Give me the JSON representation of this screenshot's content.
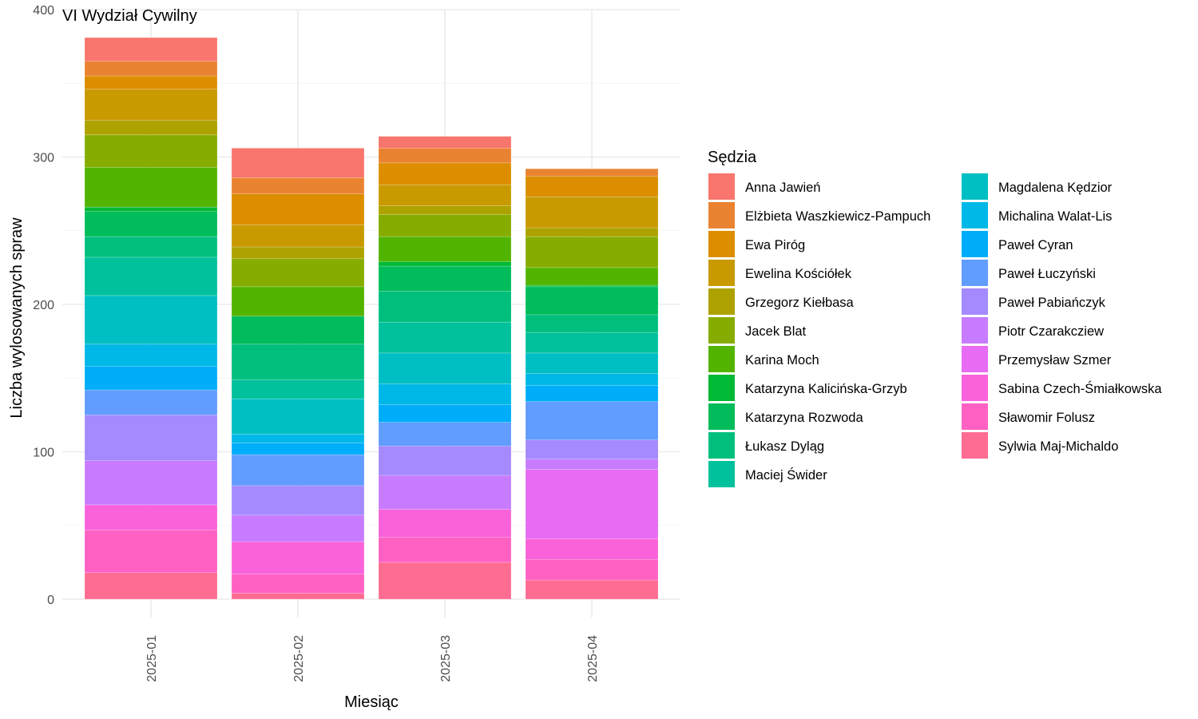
{
  "chart_data": {
    "type": "bar",
    "stacked": true,
    "title": "VI Wydział Cywilny",
    "xlabel": "Miesiąc",
    "ylabel": "Liczba wylosowanych spraw",
    "ylim": [
      0,
      400
    ],
    "yticks": [
      0,
      100,
      200,
      300,
      400
    ],
    "grid": true,
    "legend_title": "Sędzia",
    "legend_position": "right",
    "categories": [
      "2025-01",
      "2025-02",
      "2025-03",
      "2025-04"
    ],
    "series": [
      {
        "name": "Anna Jawień",
        "color": "#F8766D",
        "values": [
          16,
          20,
          8,
          0
        ]
      },
      {
        "name": "Elżbieta Waszkiewicz-Pampuch",
        "color": "#EA8331",
        "values": [
          10,
          11,
          10,
          5
        ]
      },
      {
        "name": "Ewa Piróg",
        "color": "#DC8E00",
        "values": [
          9,
          21,
          15,
          14
        ]
      },
      {
        "name": "Ewelina Kościółek",
        "color": "#C89A00",
        "values": [
          21,
          15,
          14,
          21
        ]
      },
      {
        "name": "Grzegorz Kiełbasa",
        "color": "#AEA200",
        "values": [
          10,
          8,
          6,
          6
        ]
      },
      {
        "name": "Jacek Blat",
        "color": "#86AC00",
        "values": [
          22,
          19,
          15,
          21
        ]
      },
      {
        "name": "Karina Moch",
        "color": "#53B400",
        "values": [
          27,
          20,
          17,
          12
        ]
      },
      {
        "name": "Katarzyna Kalicińska-Grzyb",
        "color": "#00B934",
        "values": [
          3,
          0,
          3,
          1
        ]
      },
      {
        "name": "Katarzyna Rozwoda",
        "color": "#00BC5A",
        "values": [
          17,
          19,
          17,
          19
        ]
      },
      {
        "name": "Łukasz Dyląg",
        "color": "#00BF7D",
        "values": [
          14,
          24,
          21,
          12
        ]
      },
      {
        "name": "Maciej Świder",
        "color": "#00C19C",
        "values": [
          26,
          13,
          21,
          14
        ]
      },
      {
        "name": "Magdalena Kędzior",
        "color": "#00BFC4",
        "values": [
          33,
          24,
          21,
          14
        ]
      },
      {
        "name": "Michalina Walat-Lis",
        "color": "#00B8E7",
        "values": [
          15,
          6,
          14,
          8
        ]
      },
      {
        "name": "Paweł Cyran",
        "color": "#00ADFA",
        "values": [
          16,
          8,
          12,
          11
        ]
      },
      {
        "name": "Paweł Łuczyński",
        "color": "#619CFF",
        "values": [
          17,
          21,
          16,
          26
        ]
      },
      {
        "name": "Paweł Pabiańczyk",
        "color": "#A58AFF",
        "values": [
          31,
          20,
          20,
          13
        ]
      },
      {
        "name": "Piotr Czarakcziew",
        "color": "#C77CFF",
        "values": [
          30,
          18,
          23,
          7
        ]
      },
      {
        "name": "Przemysław Szmer",
        "color": "#E76BF3",
        "values": [
          0,
          0,
          0,
          47
        ]
      },
      {
        "name": "Sabina Czech-Śmiałkowska",
        "color": "#FA62DB",
        "values": [
          17,
          22,
          19,
          14
        ]
      },
      {
        "name": "Sławomir Folusz",
        "color": "#FF61C3",
        "values": [
          29,
          13,
          17,
          14
        ]
      },
      {
        "name": "Sylwia Maj-Michaldo",
        "color": "#FF6C92",
        "values": [
          18,
          4,
          25,
          13
        ]
      }
    ]
  }
}
